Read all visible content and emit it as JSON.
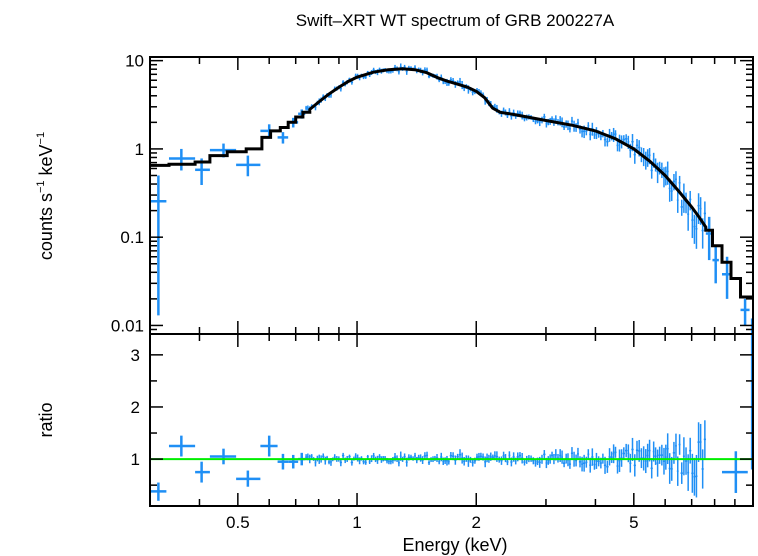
{
  "chart_data": {
    "type": "scatter",
    "title": "Swift–XRT WT spectrum of GRB 200227A",
    "xlabel": "Energy (keV)",
    "xscale": "log",
    "xlim": [
      0.3,
      10
    ],
    "x_tick_labels": [
      "0.5",
      "1",
      "2",
      "5"
    ],
    "x_tick_values": [
      0.5,
      1,
      2,
      5
    ],
    "colors": {
      "data": "#1f8ff5",
      "model": "#000000",
      "unity": "#00ee00",
      "frame": "#000000"
    },
    "panels": [
      {
        "name": "spectrum",
        "ylabel_parts": [
          "counts s",
          "−1",
          " keV",
          "−1"
        ],
        "yscale": "log",
        "ylim": [
          0.008,
          11
        ],
        "y_tick_labels": [
          "0.01",
          "0.1",
          "1",
          "10"
        ],
        "y_tick_values": [
          0.01,
          0.1,
          1,
          10
        ],
        "data_points": [
          [
            0.315,
            0.255,
            0.3,
            0.33,
            0.013,
            0.5
          ],
          [
            0.36,
            0.78,
            0.335,
            0.39,
            0.57,
            1.0
          ],
          [
            0.405,
            0.58,
            0.39,
            0.425,
            0.39,
            0.78
          ],
          [
            0.46,
            0.97,
            0.425,
            0.495,
            0.8,
            1.15
          ],
          [
            0.53,
            0.66,
            0.495,
            0.57,
            0.49,
            0.84
          ],
          [
            0.6,
            1.6,
            0.57,
            0.63,
            1.35,
            1.9
          ],
          [
            0.65,
            1.35,
            0.63,
            0.67,
            1.15,
            1.55
          ],
          [
            0.69,
            2.0,
            0.67,
            0.71,
            1.75,
            2.25
          ],
          [
            0.725,
            2.5,
            0.71,
            0.74,
            2.2,
            2.8
          ]
        ],
        "model_step": [
          [
            0.3,
            0.335,
            0.65
          ],
          [
            0.335,
            0.39,
            0.67
          ],
          [
            0.39,
            0.425,
            0.71
          ],
          [
            0.425,
            0.47,
            0.84
          ],
          [
            0.47,
            0.525,
            0.93
          ],
          [
            0.525,
            0.575,
            1.0
          ],
          [
            0.575,
            0.605,
            1.35
          ],
          [
            0.605,
            0.64,
            1.6
          ],
          [
            0.64,
            0.67,
            1.75
          ],
          [
            0.67,
            0.7,
            2.0
          ],
          [
            0.7,
            0.73,
            2.3
          ],
          [
            0.73,
            0.76,
            2.6
          ]
        ],
        "model_smooth": [
          [
            0.76,
            2.8
          ],
          [
            0.8,
            3.4
          ],
          [
            0.85,
            4.2
          ],
          [
            0.9,
            5.0
          ],
          [
            0.95,
            5.8
          ],
          [
            1.0,
            6.5
          ],
          [
            1.1,
            7.4
          ],
          [
            1.2,
            7.9
          ],
          [
            1.3,
            8.1
          ],
          [
            1.4,
            7.9
          ],
          [
            1.5,
            7.3
          ],
          [
            1.6,
            6.4
          ],
          [
            1.7,
            5.8
          ],
          [
            1.8,
            5.4
          ],
          [
            1.9,
            5.0
          ],
          [
            2.0,
            4.5
          ],
          [
            2.1,
            3.8
          ],
          [
            2.2,
            2.9
          ],
          [
            2.3,
            2.6
          ],
          [
            2.5,
            2.45
          ],
          [
            3.0,
            2.1
          ],
          [
            3.5,
            1.85
          ],
          [
            4.0,
            1.6
          ],
          [
            4.5,
            1.3
          ],
          [
            5.0,
            1.0
          ],
          [
            5.5,
            0.72
          ],
          [
            6.0,
            0.5
          ],
          [
            6.5,
            0.33
          ],
          [
            7.0,
            0.22
          ],
          [
            7.3,
            0.17
          ],
          [
            7.6,
            0.13
          ]
        ],
        "model_tail_step": [
          [
            7.6,
            7.9,
            0.12
          ],
          [
            7.9,
            8.35,
            0.08
          ],
          [
            8.35,
            8.8,
            0.052
          ],
          [
            8.8,
            9.3,
            0.034
          ],
          [
            9.3,
            10.0,
            0.021
          ]
        ],
        "tail_points": [
          [
            7.75,
            0.11,
            7.6,
            7.9,
            0.055,
            0.17
          ],
          [
            8.05,
            0.055,
            7.9,
            8.2,
            0.03,
            0.08
          ],
          [
            8.6,
            0.038,
            8.35,
            8.85,
            0.02,
            0.06
          ],
          [
            9.55,
            0.015,
            9.3,
            9.8,
            0.01,
            0.02
          ],
          [
            9.95,
            0.009,
            9.9,
            10.0,
            0.008,
            0.012
          ]
        ]
      },
      {
        "name": "ratio",
        "ylabel": "ratio",
        "yscale": "linear",
        "ylim": [
          0.1,
          3.4
        ],
        "y_tick_labels": [
          "1",
          "2",
          "3"
        ],
        "y_tick_values": [
          1,
          2,
          3
        ],
        "unity_line": 1.0,
        "data_points": [
          [
            0.315,
            0.38,
            0.3,
            0.33,
            0.2,
            0.55
          ],
          [
            0.36,
            1.25,
            0.335,
            0.39,
            1.05,
            1.45
          ],
          [
            0.405,
            0.75,
            0.39,
            0.425,
            0.55,
            0.95
          ],
          [
            0.46,
            1.05,
            0.425,
            0.495,
            0.9,
            1.2
          ],
          [
            0.53,
            0.62,
            0.495,
            0.57,
            0.47,
            0.78
          ],
          [
            0.6,
            1.25,
            0.57,
            0.63,
            1.05,
            1.45
          ],
          [
            0.65,
            0.95,
            0.63,
            0.67,
            0.8,
            1.1
          ],
          [
            0.69,
            0.95,
            0.67,
            0.71,
            0.82,
            1.08
          ],
          [
            0.725,
            1.0,
            0.71,
            0.74,
            0.88,
            1.12
          ]
        ],
        "tail_points": [
          [
            9.05,
            0.75,
            8.35,
            9.7,
            0.35,
            1.15
          ],
          [
            9.95,
            2.1,
            9.9,
            10.0,
            0.8,
            3.4
          ]
        ]
      }
    ]
  }
}
